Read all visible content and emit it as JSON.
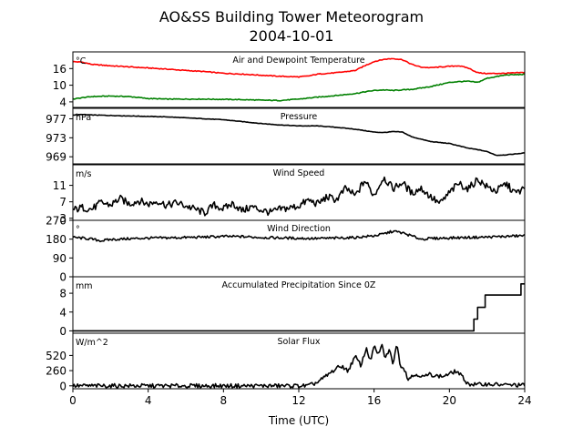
{
  "figure": {
    "title_line1": "AO&SS Building Tower Meteorogram",
    "title_line2": "2004-10-01",
    "xlabel": "Time (UTC)",
    "xticks": [
      0,
      4,
      8,
      12,
      16,
      20,
      24
    ],
    "xlim": [
      0,
      24
    ]
  },
  "chart_data": [
    {
      "type": "line",
      "title": "Air and Dewpoint Temperature",
      "unit": "°C",
      "ylim": [
        2,
        22
      ],
      "yticks": [
        4,
        10,
        16
      ],
      "series": [
        {
          "color": "#ff0000",
          "x": [
            0,
            0.5,
            1,
            2,
            3,
            4,
            5,
            6,
            7,
            8,
            9,
            10,
            11,
            12,
            12.5,
            13,
            14,
            15,
            15.5,
            16,
            16.5,
            17,
            17.5,
            18,
            18.5,
            19,
            20,
            20.5,
            21,
            21.5,
            22,
            23,
            24
          ],
          "y": [
            18.5,
            18.3,
            17.5,
            17,
            16.6,
            16.2,
            15.8,
            15.3,
            14.9,
            14.3,
            14,
            13.6,
            13.2,
            13,
            13.3,
            14,
            14.5,
            15.3,
            17,
            18.5,
            19.3,
            19.6,
            19.2,
            17.5,
            16.5,
            16.3,
            16.8,
            17,
            16.2,
            14.5,
            14.2,
            14.3,
            14.6
          ]
        },
        {
          "color": "#008000",
          "x": [
            0,
            0.5,
            1,
            2,
            3,
            4,
            5,
            6,
            7,
            8,
            9,
            10,
            11,
            12,
            13,
            14,
            15,
            15.5,
            16,
            16.5,
            17,
            18,
            19,
            20,
            20.5,
            21,
            21.5,
            22,
            23,
            24
          ],
          "y": [
            5,
            5.5,
            5.9,
            6.1,
            5.9,
            5.2,
            5,
            5,
            5,
            4.9,
            4.8,
            4.6,
            4.5,
            5,
            5.7,
            6.3,
            7,
            7.6,
            8.1,
            8.3,
            8.1,
            8.5,
            9.5,
            11,
            11.3,
            11.4,
            11,
            12.5,
            13.7,
            13.9
          ]
        }
      ]
    },
    {
      "type": "line",
      "title": "Pressure",
      "unit": "hPa",
      "ylim": [
        967.5,
        979.2
      ],
      "yticks": [
        969,
        973,
        977
      ],
      "series": [
        {
          "color": "#000000",
          "x": [
            0,
            0.5,
            1,
            2,
            3,
            4,
            5,
            6,
            7,
            7.5,
            8,
            9,
            10,
            11,
            12,
            13,
            14,
            15,
            15.5,
            16,
            16.5,
            17,
            17.5,
            18,
            19,
            20,
            21,
            21.5,
            22,
            22.5,
            23,
            23.5,
            24
          ],
          "y": [
            977.8,
            977.9,
            977.8,
            977.7,
            977.6,
            977.5,
            977.4,
            977.2,
            977,
            976.9,
            976.8,
            976.4,
            976,
            975.7,
            975.5,
            975.5,
            975.2,
            974.8,
            974.5,
            974.2,
            974.1,
            974.3,
            974.2,
            973.2,
            972.2,
            971.8,
            970.8,
            970.5,
            970.1,
            969.3,
            969.4,
            969.6,
            969.8
          ]
        }
      ]
    },
    {
      "type": "line",
      "title": "Wind Speed",
      "unit": "m/s",
      "ylim": [
        2.5,
        16
      ],
      "yticks": [
        3,
        7,
        11
      ],
      "series": [
        {
          "color": "#000000",
          "x": [
            0,
            0.5,
            1,
            1.5,
            2,
            2.5,
            3,
            3.5,
            4,
            4.5,
            5,
            5.5,
            6,
            6.5,
            7,
            7.5,
            8,
            8.5,
            9,
            9.5,
            10,
            10.5,
            11,
            11.5,
            12,
            12.5,
            13,
            13.5,
            14,
            14.5,
            15,
            15.5,
            16,
            16.5,
            17,
            17.5,
            18,
            18.5,
            19,
            19.5,
            20,
            20.5,
            21,
            21.5,
            22,
            22.5,
            23,
            23.5,
            24
          ],
          "y": [
            5,
            5.6,
            5.2,
            6.8,
            6.2,
            7.8,
            6.5,
            7.3,
            6.4,
            7.2,
            6.1,
            6.8,
            6,
            5.2,
            4.3,
            6.2,
            5.3,
            6.6,
            4.8,
            5.8,
            5,
            4.4,
            5.2,
            5.5,
            6,
            7.4,
            6.5,
            8.2,
            7.5,
            10.3,
            8.4,
            12.2,
            8.5,
            13,
            10.2,
            11.7,
            9.1,
            10.3,
            8.2,
            6.5,
            9.2,
            11.5,
            10.1,
            12.5,
            10.6,
            9.6,
            11.4,
            9.1,
            10.2
          ]
        }
      ]
    },
    {
      "type": "line",
      "title": "Wind Direction",
      "unit": "°",
      "ylim": [
        0,
        270
      ],
      "yticks": [
        0,
        90,
        180,
        270
      ],
      "series": [
        {
          "color": "#000000",
          "x": [
            0,
            0.5,
            1,
            1.5,
            2,
            3,
            4,
            5,
            6,
            7,
            8,
            9,
            10,
            11,
            12,
            13,
            14,
            15,
            16,
            16.5,
            17,
            17.5,
            18,
            18.5,
            19,
            20,
            21,
            22,
            23,
            24
          ],
          "y": [
            188,
            185,
            180,
            172,
            178,
            182,
            185,
            186,
            188,
            190,
            193,
            192,
            188,
            186,
            184,
            183,
            185,
            188,
            196,
            205,
            218,
            210,
            195,
            180,
            183,
            186,
            188,
            190,
            193,
            197
          ]
        }
      ]
    },
    {
      "type": "line",
      "title": "Accumulated Precipitation Since 0Z",
      "unit": "mm",
      "ylim": [
        -0.5,
        11.5
      ],
      "yticks": [
        0,
        4,
        8
      ],
      "series": [
        {
          "color": "#000000",
          "x": [
            0,
            21.2,
            21.3,
            21.3,
            21.5,
            21.5,
            21.9,
            21.9,
            23.8,
            23.8,
            24
          ],
          "y": [
            0,
            0,
            0,
            2.5,
            2.5,
            5,
            5,
            7.6,
            7.6,
            10,
            10
          ]
        }
      ]
    },
    {
      "type": "line",
      "title": "Solar Flux",
      "unit": "W/m^2",
      "ylim": [
        -50,
        900
      ],
      "yticks": [
        0,
        260,
        520
      ],
      "series": [
        {
          "color": "#000000",
          "x": [
            0,
            12.5,
            13,
            13.3,
            13.6,
            14,
            14.3,
            14.6,
            15,
            15.3,
            15.6,
            15.8,
            16,
            16.2,
            16.4,
            16.6,
            16.8,
            17,
            17.2,
            17.4,
            17.6,
            17.8,
            18,
            18.3,
            18.6,
            19,
            19.3,
            19.6,
            20,
            20.3,
            20.5,
            21,
            21.5,
            22,
            23,
            24
          ],
          "y": [
            0,
            0,
            60,
            130,
            200,
            300,
            340,
            250,
            500,
            350,
            650,
            420,
            680,
            520,
            700,
            470,
            620,
            380,
            720,
            350,
            300,
            120,
            160,
            200,
            150,
            200,
            170,
            160,
            200,
            250,
            220,
            30,
            20,
            30,
            15,
            10
          ]
        }
      ]
    }
  ]
}
